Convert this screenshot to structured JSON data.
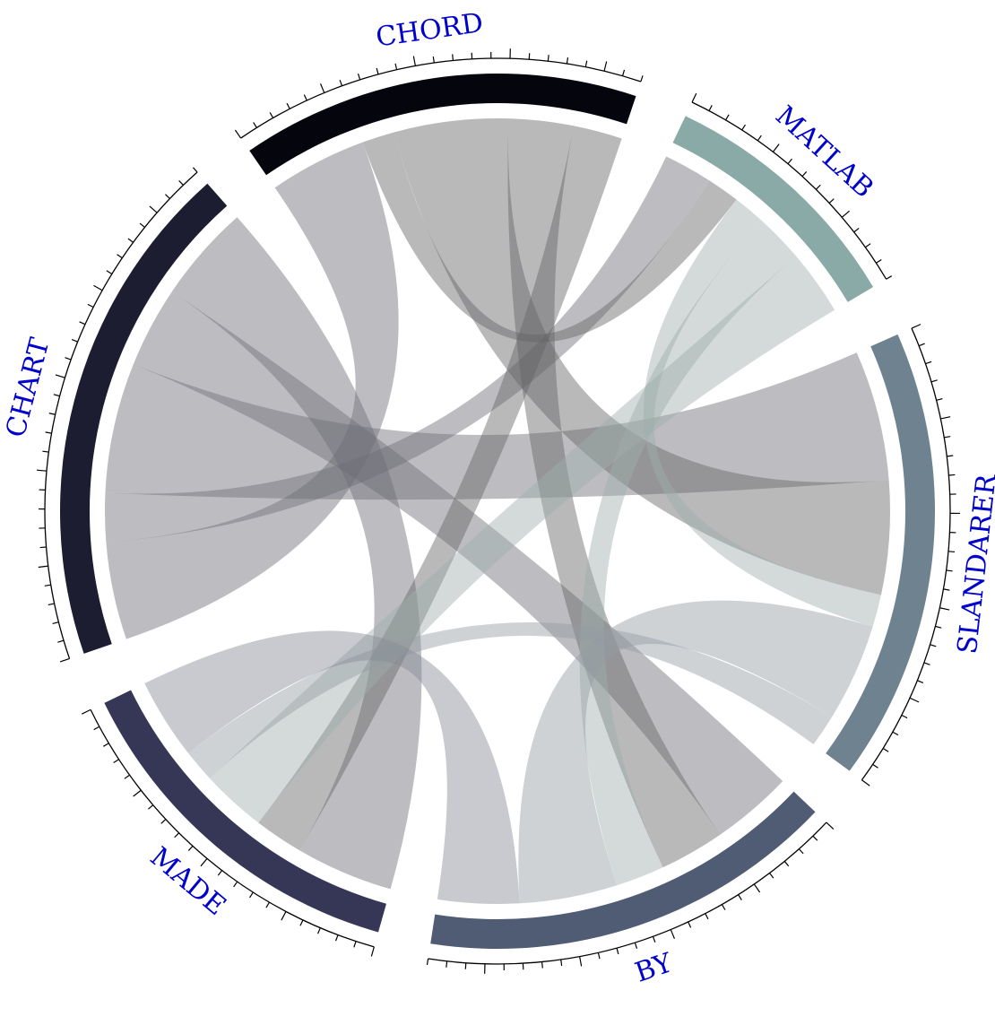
{
  "chart_data": {
    "type": "chord",
    "title": "",
    "segments": [
      {
        "label": "CHART",
        "color": "#1c1d31"
      },
      {
        "label": "CHORD",
        "color": "#05060d"
      },
      {
        "label": "MATLAB",
        "color": "#8aaaa7"
      },
      {
        "label": "SLANDARER",
        "color": "#6e8290"
      },
      {
        "label": "BY",
        "color": "#4f5c74"
      },
      {
        "label": "MADE",
        "color": "#363756"
      }
    ],
    "matrix": [
      [
        0,
        6,
        3,
        8,
        5,
        6
      ],
      [
        6,
        0,
        2,
        7,
        4,
        3
      ],
      [
        3,
        2,
        0,
        2,
        3,
        4
      ],
      [
        8,
        7,
        2,
        0,
        6,
        2
      ],
      [
        5,
        4,
        3,
        6,
        0,
        5
      ],
      [
        6,
        3,
        4,
        2,
        5,
        0
      ]
    ]
  }
}
